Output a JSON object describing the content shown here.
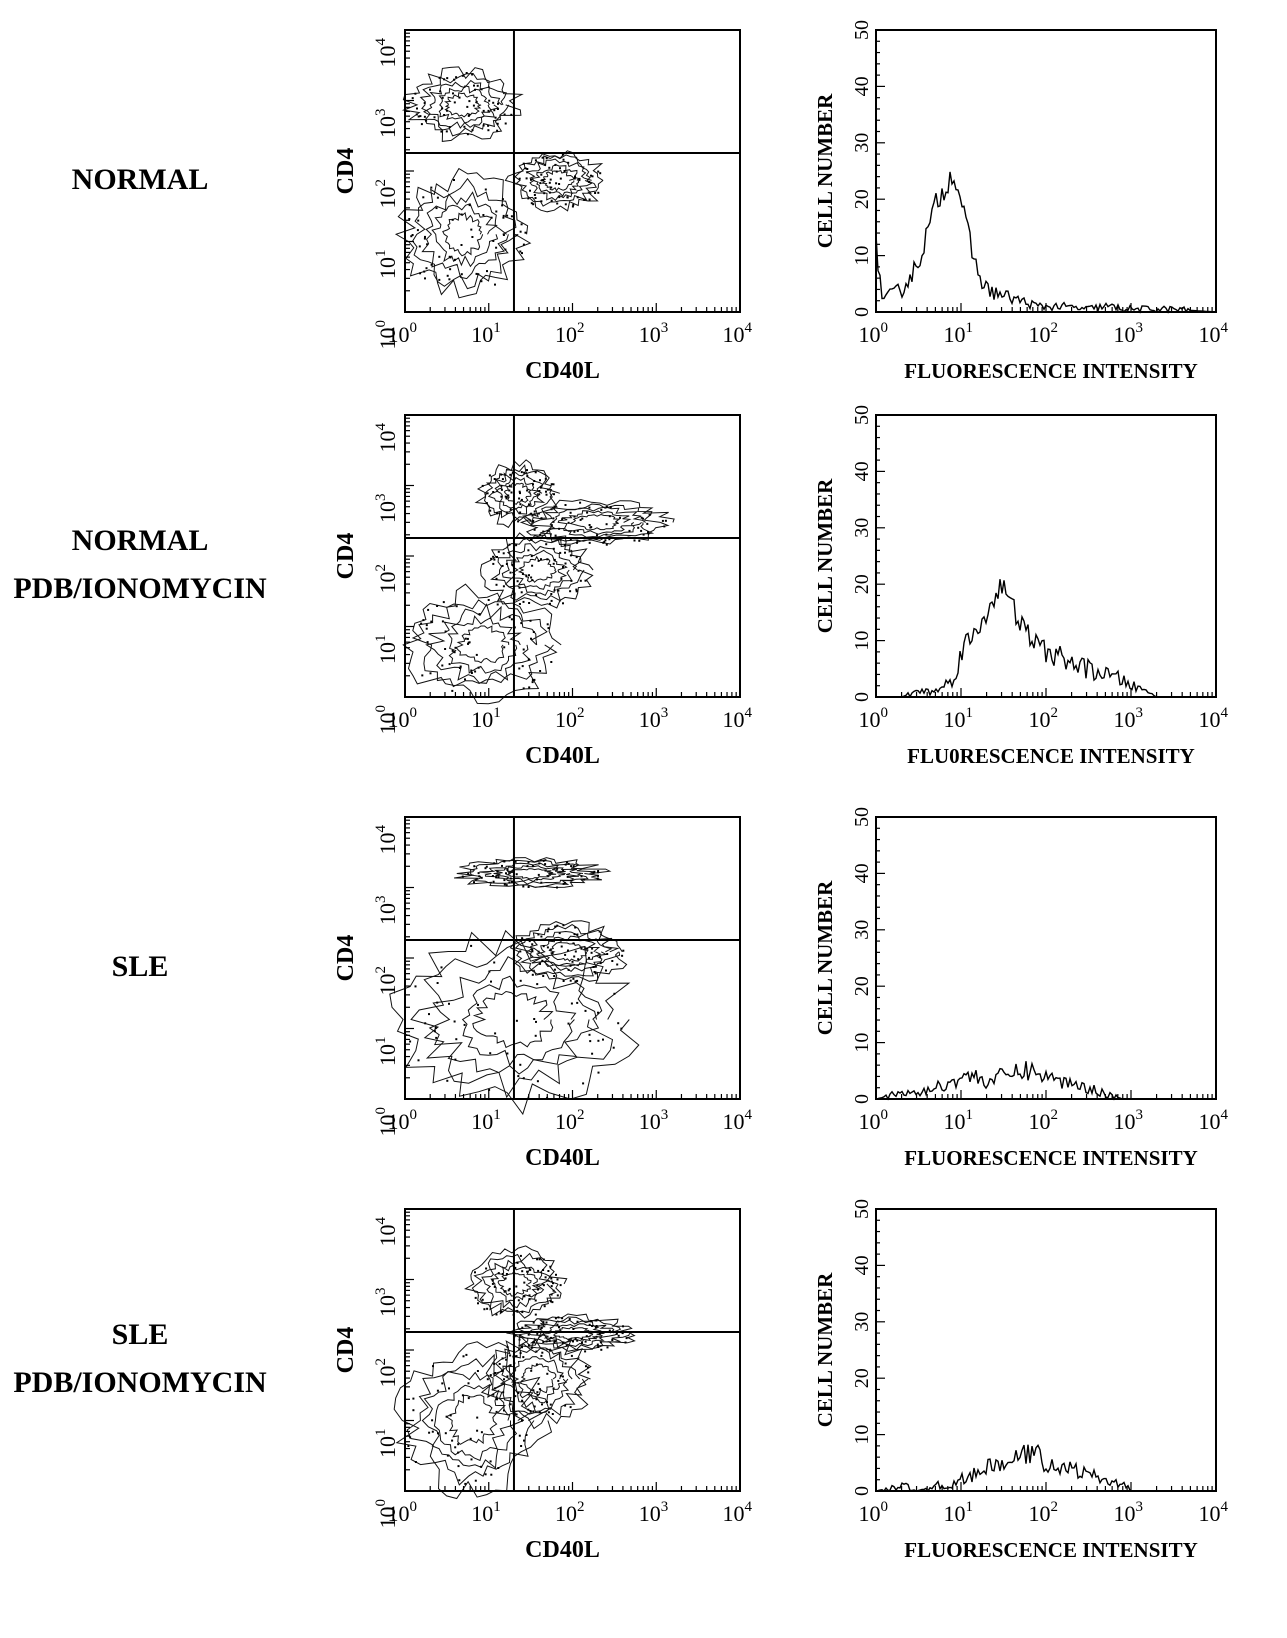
{
  "panels": [
    {
      "label_lines": [
        "NORMAL"
      ],
      "contour_plot": {
        "type": "scatter",
        "xlabel": "CD40L",
        "ylabel": "CD4",
        "xscale": "log",
        "yscale": "log",
        "xlim": [
          1,
          10000
        ],
        "ylim": [
          1,
          10000
        ],
        "quadrant_gate": {
          "x": 20,
          "y": 180
        },
        "populations": [
          {
            "x": [
              1.2,
              20
            ],
            "y": [
              300,
              2500
            ]
          },
          {
            "x": [
              20,
              220
            ],
            "y": [
              30,
              180
            ]
          },
          {
            "x": [
              1,
              25
            ],
            "y": [
              2,
              80
            ]
          }
        ]
      },
      "histogram": {
        "type": "area",
        "xlabel": "FLUORESCENCE INTENSITY",
        "ylabel": "CELL NUMBER",
        "xscale": "log",
        "xlim": [
          1,
          10000
        ],
        "ylim": [
          0,
          50
        ],
        "x": [
          1,
          1.2,
          1.5,
          2,
          3,
          4,
          5,
          6,
          7,
          8,
          10,
          12,
          15,
          20,
          30,
          50,
          80,
          100,
          150,
          300,
          500,
          1000,
          3000,
          10000
        ],
        "values": [
          12,
          2,
          3,
          4,
          8,
          14,
          19,
          21,
          23,
          25,
          20,
          14,
          8,
          4,
          3,
          2,
          1,
          1,
          1,
          0.5,
          1,
          0.5,
          0.5,
          0
        ]
      }
    },
    {
      "label_lines": [
        "NORMAL",
        "PDB/IONOMYCIN"
      ],
      "contour_plot": {
        "type": "scatter",
        "xlabel": "CD40L",
        "ylabel": "CD4",
        "xscale": "log",
        "yscale": "log",
        "xlim": [
          1,
          10000
        ],
        "ylim": [
          1,
          10000
        ],
        "quadrant_gate": {
          "x": 20,
          "y": 180
        },
        "populations": [
          {
            "x": [
              8,
              60
            ],
            "y": [
              300,
              2000
            ]
          },
          {
            "x": [
              30,
              1200
            ],
            "y": [
              150,
              600
            ]
          },
          {
            "x": [
              1.2,
              60
            ],
            "y": [
              1,
              30
            ]
          },
          {
            "x": [
              10,
              150
            ],
            "y": [
              20,
              200
            ]
          }
        ]
      },
      "histogram": {
        "type": "area",
        "xlabel": "FLU0RESCENCE INTENSITY",
        "ylabel": "CELL NUMBER",
        "xscale": "log",
        "xlim": [
          1,
          10000
        ],
        "ylim": [
          0,
          50
        ],
        "x": [
          1,
          2,
          3,
          5,
          8,
          10,
          12,
          15,
          20,
          25,
          30,
          40,
          50,
          70,
          100,
          150,
          200,
          300,
          500,
          800,
          1000,
          1500,
          2000,
          10000
        ],
        "values": [
          0,
          0,
          1,
          1,
          3,
          8,
          10,
          11,
          15,
          18,
          20,
          16,
          13,
          10,
          8,
          7,
          6,
          5,
          4,
          3,
          2,
          1,
          0,
          0
        ]
      }
    },
    {
      "label_lines": [
        "SLE"
      ],
      "contour_plot": {
        "type": "scatter",
        "xlabel": "CD40L",
        "ylabel": "CD4",
        "xscale": "log",
        "yscale": "log",
        "xlim": [
          1,
          10000
        ],
        "ylim": [
          1,
          10000
        ],
        "quadrant_gate": {
          "x": 20,
          "y": 180
        },
        "populations": [
          {
            "x": [
              5,
              200
            ],
            "y": [
              1000,
              2500
            ]
          },
          {
            "x": [
              1,
              400
            ],
            "y": [
              1,
              180
            ]
          },
          {
            "x": [
              20,
              400
            ],
            "y": [
              50,
              300
            ]
          }
        ]
      },
      "histogram": {
        "type": "area",
        "xlabel": "FLUORESCENCE INTENSITY",
        "ylabel": "CELL NUMBER",
        "xscale": "log",
        "xlim": [
          1,
          10000
        ],
        "ylim": [
          0,
          50
        ],
        "x": [
          1,
          2,
          3,
          5,
          8,
          10,
          15,
          20,
          30,
          50,
          70,
          100,
          150,
          200,
          300,
          500,
          800,
          10000
        ],
        "values": [
          0,
          1,
          1,
          2,
          3,
          4,
          4,
          3,
          4,
          5,
          5,
          4,
          3,
          3,
          2,
          1,
          0,
          0
        ]
      }
    },
    {
      "label_lines": [
        "SLE",
        "PDB/IONOMYCIN"
      ],
      "contour_plot": {
        "type": "scatter",
        "xlabel": "CD40L",
        "ylabel": "CD4",
        "xscale": "log",
        "yscale": "log",
        "xlim": [
          1,
          10000
        ],
        "ylim": [
          1,
          10000
        ],
        "quadrant_gate": {
          "x": 20,
          "y": 180
        },
        "populations": [
          {
            "x": [
              6,
              70
            ],
            "y": [
              300,
              2500
            ]
          },
          {
            "x": [
              20,
              500
            ],
            "y": [
              100,
              300
            ]
          },
          {
            "x": [
              1,
              40
            ],
            "y": [
              1,
              100
            ]
          },
          {
            "x": [
              10,
              150
            ],
            "y": [
              10,
              150
            ]
          }
        ]
      },
      "histogram": {
        "type": "area",
        "xlabel": "FLUORESCENCE INTENSITY",
        "ylabel": "CELL NUMBER",
        "xscale": "log",
        "xlim": [
          1,
          10000
        ],
        "ylim": [
          0,
          50
        ],
        "x": [
          1,
          2,
          3,
          5,
          8,
          10,
          15,
          20,
          30,
          40,
          50,
          70,
          100,
          150,
          200,
          300,
          500,
          800,
          1000,
          10000
        ],
        "values": [
          0,
          1,
          0,
          1,
          1,
          2,
          3,
          4,
          5,
          5,
          6,
          7,
          5,
          4,
          4,
          3,
          2,
          1,
          0,
          0
        ]
      }
    }
  ],
  "log_axis_ticks": [
    {
      "base": "10",
      "exp": "0"
    },
    {
      "base": "10",
      "exp": "1"
    },
    {
      "base": "10",
      "exp": "2"
    },
    {
      "base": "10",
      "exp": "3"
    },
    {
      "base": "10",
      "exp": "4"
    }
  ],
  "linear_axis_ticks": [
    "0",
    "10",
    "20",
    "30",
    "40",
    "50"
  ]
}
